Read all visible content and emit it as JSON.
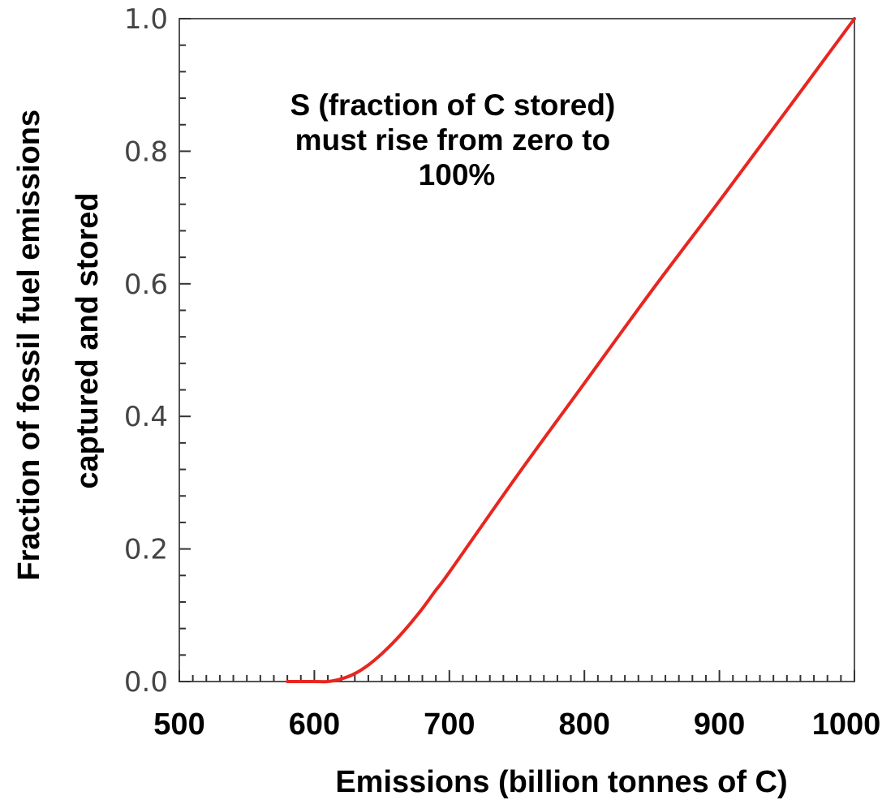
{
  "chart_data": {
    "type": "line",
    "xlabel": "Emissions (billion tonnes of C)",
    "ylabel_lines": [
      "Fraction of fossil fuel emissions",
      "captured and stored"
    ],
    "annotation_lines": [
      "S (fraction of C stored)",
      "must rise from zero to",
      "100%"
    ],
    "xlim": [
      500,
      1000
    ],
    "ylim": [
      0,
      1
    ],
    "x_ticks": [
      500,
      600,
      700,
      800,
      900,
      1000
    ],
    "x_tick_labels": [
      "500",
      "600",
      "700",
      "800",
      "900",
      "1000"
    ],
    "y_ticks": [
      0.0,
      0.2,
      0.4,
      0.6,
      0.8,
      1.0
    ],
    "y_tick_labels": [
      "0.0",
      "0.2",
      "0.4",
      "0.6",
      "0.8",
      "1.0"
    ],
    "grid": false,
    "series": [
      {
        "color": "#e8261f",
        "x": [
          580,
          600,
          610,
          620,
          630,
          640,
          650,
          660,
          670,
          680,
          690,
          700,
          750,
          800,
          850,
          900,
          950,
          1000
        ],
        "y": [
          0.0,
          0.0,
          0.0,
          0.004,
          0.012,
          0.025,
          0.042,
          0.062,
          0.085,
          0.11,
          0.138,
          0.165,
          0.31,
          0.45,
          0.59,
          0.725,
          0.862,
          1.0
        ]
      }
    ]
  }
}
